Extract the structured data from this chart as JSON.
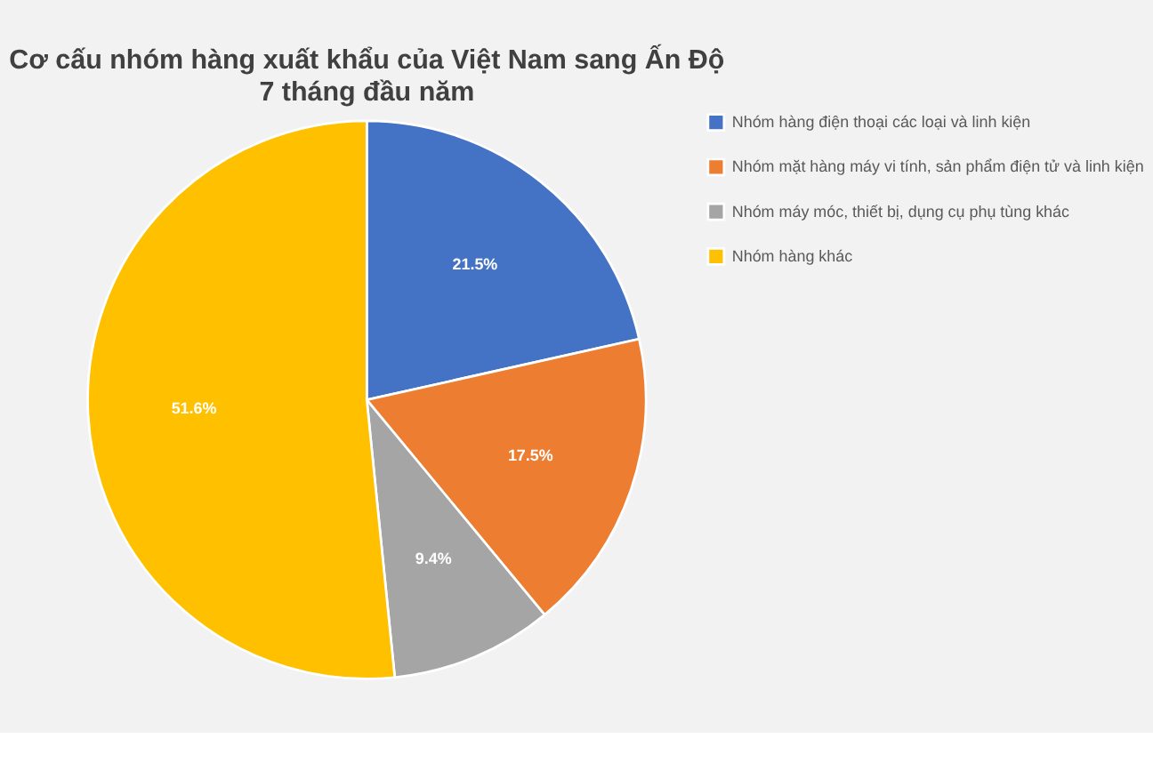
{
  "chart_data": {
    "type": "pie",
    "title": "Cơ cấu nhóm hàng xuất khẩu của Việt Nam sang Ấn Độ",
    "subtitle": "7 tháng đầu năm",
    "categories": [
      "Nhóm hàng điện thoại các loại và linh kiện",
      "Nhóm mặt hàng máy vi tính, sản phẩm điện tử và linh kiện",
      "Nhóm máy móc, thiết bị, dụng cụ phụ tùng khác",
      "Nhóm hàng khác"
    ],
    "values": [
      21.5,
      17.5,
      9.4,
      51.6
    ],
    "colors": [
      "#4472c4",
      "#ed7d31",
      "#a5a5a5",
      "#ffc000"
    ],
    "value_labels": [
      "21.5%",
      "17.5%",
      "9.4%",
      "51.6%"
    ],
    "legend": "right"
  }
}
